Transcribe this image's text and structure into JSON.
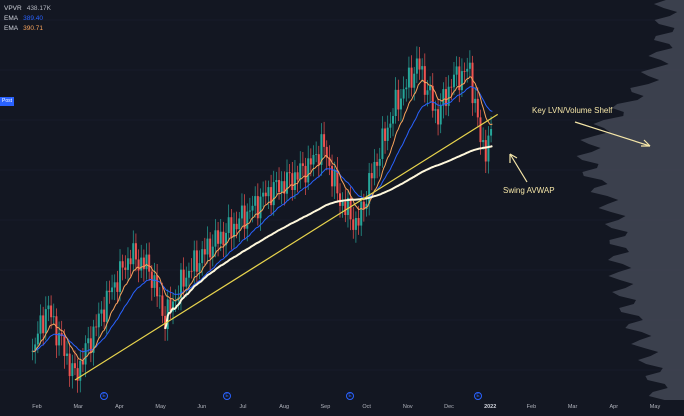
{
  "chart_data": {
    "type": "candlestick",
    "legend": [
      {
        "name": "VPVR",
        "value": "438.17K",
        "color": "#b2b5be"
      },
      {
        "name": "EMA",
        "value": "389.40",
        "color": "#2962ff"
      },
      {
        "name": "EMA",
        "value": "390.71",
        "color": "#f7a35c"
      }
    ],
    "price_tag": "Post",
    "annotations": {
      "volume_shelf": "Key LVN/Volume Shelf",
      "avwap": "Swing AVWAP"
    },
    "x_axis_labels": [
      "Feb",
      "Mar",
      "Apr",
      "May",
      "Jun",
      "Jul",
      "Aug",
      "Sep",
      "Oct",
      "Nov",
      "Dec",
      "2022",
      "Feb",
      "Mar",
      "Apr",
      "May"
    ],
    "bold_x_label": "2022",
    "event_markers": [
      "Apr",
      "Jul",
      "Oct",
      "Jan"
    ],
    "price_path": [
      [
        "2021-02-01",
        312
      ],
      [
        "2021-02-12",
        326
      ],
      [
        "2021-02-26",
        311
      ],
      [
        "2021-03-05",
        304
      ],
      [
        "2021-03-19",
        318
      ],
      [
        "2021-04-01",
        331
      ],
      [
        "2021-04-16",
        342
      ],
      [
        "2021-04-30",
        338
      ],
      [
        "2021-05-12",
        322
      ],
      [
        "2021-05-28",
        336
      ],
      [
        "2021-06-15",
        345
      ],
      [
        "2021-06-30",
        350
      ],
      [
        "2021-07-15",
        356
      ],
      [
        "2021-07-30",
        362
      ],
      [
        "2021-08-16",
        366
      ],
      [
        "2021-08-31",
        371
      ],
      [
        "2021-09-08",
        377
      ],
      [
        "2021-09-20",
        360
      ],
      [
        "2021-10-04",
        351
      ],
      [
        "2021-10-15",
        367
      ],
      [
        "2021-11-01",
        388
      ],
      [
        "2021-11-19",
        402
      ],
      [
        "2021-11-30",
        389
      ],
      [
        "2021-12-03",
        385
      ],
      [
        "2021-12-15",
        397
      ],
      [
        "2021-12-28",
        400
      ],
      [
        "2022-01-05",
        378
      ],
      [
        "2022-01-10",
        375
      ],
      [
        "2022-01-14",
        381
      ]
    ],
    "trendline": [
      [
        "2021-03-05",
        303
      ],
      [
        "2022-01-18",
        386
      ]
    ],
    "avwap_anchor": "2021-05-12"
  }
}
